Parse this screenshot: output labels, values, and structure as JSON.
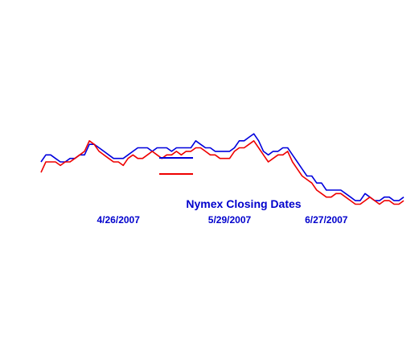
{
  "chart_data": {
    "type": "line",
    "title": "",
    "xlabel": "Nymex Closing Dates",
    "ylabel": "",
    "x_tick_labels": [
      "4/26/2007",
      "5/29/2007",
      "6/27/2007"
    ],
    "x_tick_index": [
      16,
      39,
      59
    ],
    "n_points": 76,
    "ylim": [
      0,
      100
    ],
    "grid": false,
    "legend_entries": [
      "",
      ""
    ],
    "colors": {
      "axis_text": "#0000CC",
      "series_blue": "#0000DD",
      "series_red": "#EE0000",
      "background": "#FFFFFF"
    },
    "series": [
      {
        "name": "",
        "color": "#0000DD",
        "values": [
          54,
          56,
          56,
          55,
          54,
          54,
          55,
          55,
          56,
          56,
          59,
          59,
          58,
          57,
          56,
          55,
          55,
          55,
          56,
          57,
          58,
          58,
          58,
          57,
          58,
          58,
          58,
          57,
          58,
          58,
          58,
          58,
          60,
          59,
          58,
          58,
          57,
          57,
          57,
          57,
          58,
          60,
          60,
          61,
          62,
          60,
          57,
          56,
          57,
          57,
          58,
          58,
          56,
          54,
          52,
          50,
          50,
          48,
          48,
          46,
          46,
          46,
          46,
          45,
          44,
          43,
          43,
          45,
          44,
          43,
          43,
          44,
          44,
          43,
          43,
          44
        ]
      },
      {
        "name": "",
        "color": "#EE0000",
        "values": [
          51,
          54,
          54,
          54,
          53,
          54,
          54,
          55,
          56,
          57,
          60,
          59,
          57,
          56,
          55,
          54,
          54,
          53,
          55,
          56,
          55,
          55,
          56,
          57,
          56,
          55,
          56,
          56,
          57,
          56,
          57,
          57,
          58,
          58,
          57,
          56,
          56,
          55,
          55,
          55,
          57,
          58,
          58,
          59,
          60,
          58,
          56,
          54,
          55,
          56,
          56,
          57,
          54,
          52,
          50,
          49,
          48,
          46,
          45,
          44,
          44,
          45,
          45,
          44,
          43,
          42,
          42,
          43,
          44,
          43,
          42,
          43,
          43,
          42,
          42,
          43
        ]
      }
    ]
  }
}
